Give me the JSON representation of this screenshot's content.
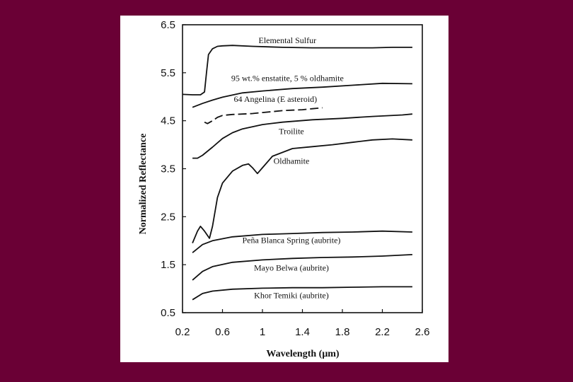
{
  "chart_data": {
    "type": "line",
    "xlabel": "Wavelength (μm)",
    "ylabel": "Normalized Reflectance",
    "xlim": [
      0.2,
      2.6
    ],
    "ylim": [
      0.5,
      6.5
    ],
    "xticks": [
      "0.2",
      "0.6",
      "1",
      "1.4",
      "1.8",
      "2.2",
      "2.6"
    ],
    "yticks": [
      "0.5",
      "1.5",
      "2.5",
      "3.5",
      "4.5",
      "5.5",
      "6.5"
    ],
    "grid": false,
    "series": [
      {
        "name": "Elemental Sulfur",
        "x": [
          0.2,
          0.3,
          0.38,
          0.42,
          0.44,
          0.46,
          0.5,
          0.55,
          0.6,
          0.7,
          0.9,
          1.2,
          1.5,
          1.8,
          2.1,
          2.3,
          2.5
        ],
        "y": [
          5.05,
          5.04,
          5.04,
          5.1,
          5.5,
          5.88,
          6.0,
          6.05,
          6.06,
          6.07,
          6.05,
          6.03,
          6.02,
          6.02,
          6.02,
          6.03,
          6.03
        ]
      },
      {
        "name": "95 wt.% enstatite, 5 % oldhamite",
        "x": [
          0.3,
          0.4,
          0.5,
          0.6,
          0.8,
          1.0,
          1.3,
          1.6,
          1.9,
          2.2,
          2.5
        ],
        "y": [
          4.78,
          4.86,
          4.93,
          4.99,
          5.08,
          5.12,
          5.17,
          5.2,
          5.24,
          5.28,
          5.27
        ]
      },
      {
        "name": "64 Angelina (E asteroid)",
        "x": [
          0.42,
          0.45,
          0.5,
          0.55,
          0.6,
          0.7,
          0.8,
          0.9,
          1.0,
          1.1,
          1.2,
          1.3,
          1.4,
          1.5,
          1.6
        ],
        "y": [
          4.47,
          4.44,
          4.5,
          4.57,
          4.61,
          4.63,
          4.64,
          4.65,
          4.67,
          4.69,
          4.71,
          4.72,
          4.73,
          4.75,
          4.77
        ]
      },
      {
        "name": "Troilite",
        "x": [
          0.3,
          0.35,
          0.4,
          0.5,
          0.6,
          0.7,
          0.8,
          1.0,
          1.2,
          1.5,
          1.8,
          2.1,
          2.4,
          2.5
        ],
        "y": [
          3.72,
          3.72,
          3.78,
          3.95,
          4.13,
          4.25,
          4.33,
          4.42,
          4.47,
          4.52,
          4.55,
          4.59,
          4.62,
          4.64
        ]
      },
      {
        "name": "Oldhamite",
        "x": [
          0.3,
          0.35,
          0.38,
          0.42,
          0.47,
          0.5,
          0.55,
          0.6,
          0.7,
          0.8,
          0.86,
          0.9,
          0.95,
          1.0,
          1.1,
          1.3,
          1.5,
          1.7,
          1.9,
          2.1,
          2.3,
          2.5
        ],
        "y": [
          1.95,
          2.2,
          2.3,
          2.2,
          2.05,
          2.3,
          2.9,
          3.2,
          3.45,
          3.57,
          3.6,
          3.52,
          3.4,
          3.52,
          3.76,
          3.92,
          3.96,
          4.0,
          4.05,
          4.1,
          4.12,
          4.1
        ]
      },
      {
        "name": "Peña Blanca Spring (aubrite)",
        "x": [
          0.3,
          0.4,
          0.5,
          0.7,
          1.0,
          1.3,
          1.6,
          1.9,
          2.2,
          2.5
        ],
        "y": [
          1.75,
          1.92,
          2.0,
          2.08,
          2.13,
          2.15,
          2.17,
          2.18,
          2.2,
          2.18
        ]
      },
      {
        "name": "Mayo Belwa (aubrite)",
        "x": [
          0.3,
          0.4,
          0.5,
          0.7,
          1.0,
          1.3,
          1.6,
          1.9,
          2.2,
          2.5
        ],
        "y": [
          1.18,
          1.36,
          1.46,
          1.55,
          1.6,
          1.63,
          1.65,
          1.66,
          1.68,
          1.71
        ]
      },
      {
        "name": "Khor Temiki (aubrite)",
        "x": [
          0.3,
          0.4,
          0.5,
          0.7,
          1.0,
          1.3,
          1.6,
          1.9,
          2.2,
          2.5
        ],
        "y": [
          0.77,
          0.9,
          0.95,
          0.99,
          1.01,
          1.02,
          1.02,
          1.03,
          1.04,
          1.04
        ]
      }
    ]
  }
}
